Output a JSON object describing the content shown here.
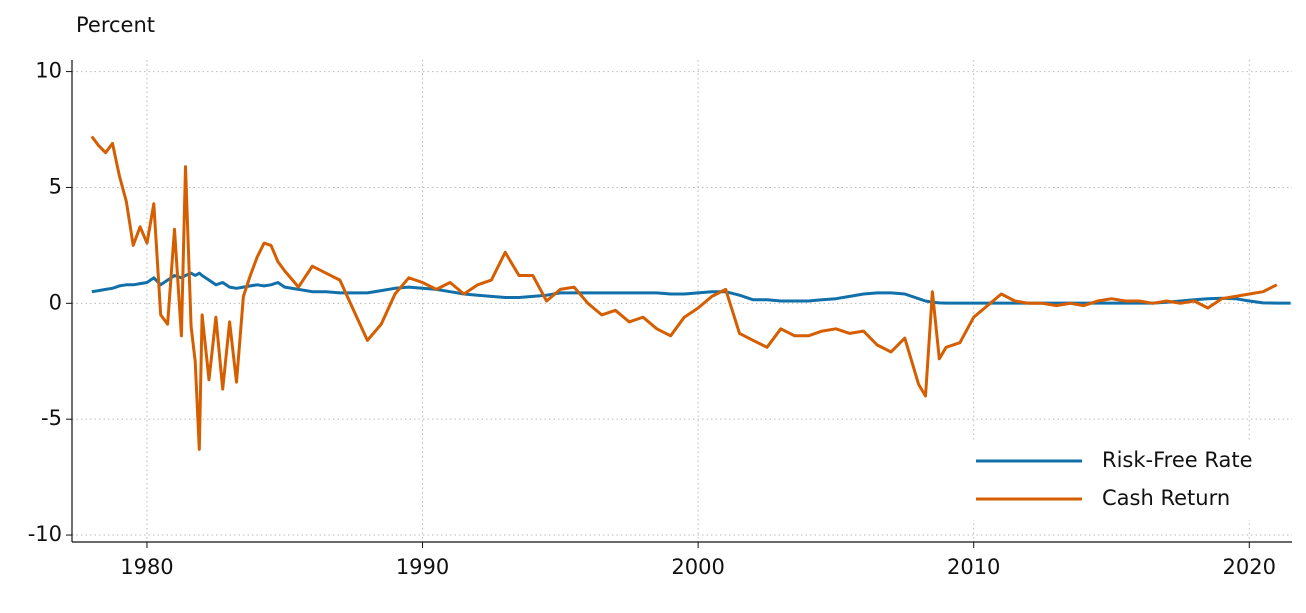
{
  "chart_data": {
    "type": "line",
    "y_label": "Percent",
    "x": [
      1978,
      1978.25,
      1978.5,
      1978.75,
      1979,
      1979.25,
      1979.5,
      1979.75,
      1980,
      1980.25,
      1980.5,
      1980.75,
      1981,
      1981.25,
      1981.4,
      1981.6,
      1981.75,
      1981.9,
      1982,
      1982.25,
      1982.5,
      1982.75,
      1983,
      1983.25,
      1983.5,
      1983.75,
      1984,
      1984.25,
      1984.5,
      1984.75,
      1985,
      1985.5,
      1986,
      1986.5,
      1987,
      1987.5,
      1988,
      1988.5,
      1989,
      1989.5,
      1990,
      1990.5,
      1991,
      1991.5,
      1992,
      1992.5,
      1993,
      1993.5,
      1994,
      1994.5,
      1995,
      1995.5,
      1996,
      1996.5,
      1997,
      1997.5,
      1998,
      1998.5,
      1999,
      1999.5,
      2000,
      2000.5,
      2001,
      2001.5,
      2002,
      2002.5,
      2003,
      2003.5,
      2004,
      2004.5,
      2005,
      2005.5,
      2006,
      2006.5,
      2007,
      2007.5,
      2008,
      2008.25,
      2008.5,
      2008.75,
      2009,
      2009.5,
      2010,
      2010.5,
      2011,
      2011.5,
      2012,
      2012.5,
      2013,
      2013.5,
      2014,
      2014.5,
      2015,
      2015.5,
      2016,
      2016.5,
      2017,
      2017.5,
      2018,
      2018.5,
      2019,
      2019.5,
      2020,
      2020.5,
      2021,
      2021.5
    ],
    "series": [
      {
        "name": "Risk-Free Rate",
        "color": "#1170aa",
        "values": [
          0.5,
          0.55,
          0.6,
          0.65,
          0.75,
          0.8,
          0.8,
          0.85,
          0.9,
          1.1,
          0.8,
          1.0,
          1.2,
          1.1,
          1.2,
          1.3,
          1.2,
          1.3,
          1.2,
          1.0,
          0.8,
          0.9,
          0.7,
          0.65,
          0.7,
          0.75,
          0.8,
          0.75,
          0.8,
          0.9,
          0.7,
          0.6,
          0.5,
          0.5,
          0.45,
          0.45,
          0.45,
          0.55,
          0.65,
          0.7,
          0.65,
          0.6,
          0.5,
          0.4,
          0.35,
          0.3,
          0.25,
          0.25,
          0.3,
          0.35,
          0.45,
          0.45,
          0.45,
          0.45,
          0.45,
          0.45,
          0.45,
          0.45,
          0.4,
          0.4,
          0.45,
          0.5,
          0.5,
          0.35,
          0.15,
          0.15,
          0.1,
          0.1,
          0.1,
          0.15,
          0.2,
          0.3,
          0.4,
          0.45,
          0.45,
          0.4,
          0.2,
          0.1,
          0.05,
          0.02,
          0.01,
          0.01,
          0.01,
          0.01,
          0.01,
          0.01,
          0.01,
          0.01,
          0.01,
          0.01,
          0.01,
          0.01,
          0.01,
          0.01,
          0.01,
          0.01,
          0.05,
          0.1,
          0.15,
          0.2,
          0.22,
          0.2,
          0.1,
          0.02,
          0.01,
          0.01
        ]
      },
      {
        "name": "Cash Return",
        "color": "#d55e00",
        "values": [
          7.2,
          6.8,
          6.5,
          6.9,
          5.5,
          4.4,
          2.5,
          3.3,
          2.6,
          4.3,
          -0.5,
          -0.9,
          3.2,
          -1.4,
          5.9,
          -1.0,
          -2.5,
          -6.3,
          -0.5,
          -3.3,
          -0.6,
          -3.7,
          -0.8,
          -3.4,
          0.3,
          1.2,
          2.0,
          2.6,
          2.5,
          1.8,
          1.4,
          0.7,
          1.6,
          1.3,
          1.0,
          -0.3,
          -1.6,
          -0.9,
          0.4,
          1.1,
          0.9,
          0.6,
          0.9,
          0.4,
          0.8,
          1.0,
          2.2,
          1.2,
          1.2,
          0.1,
          0.6,
          0.7,
          0.0,
          -0.5,
          -0.3,
          -0.8,
          -0.6,
          -1.1,
          -1.4,
          -0.6,
          -0.2,
          0.3,
          0.6,
          -1.3,
          -1.6,
          -1.9,
          -1.1,
          -1.4,
          -1.4,
          -1.2,
          -1.1,
          -1.3,
          -1.2,
          -1.8,
          -2.1,
          -1.5,
          -3.5,
          -4.0,
          0.5,
          -2.4,
          -1.9,
          -1.7,
          -0.6,
          -0.1,
          0.4,
          0.1,
          0.0,
          0.0,
          -0.1,
          0.0,
          -0.1,
          0.1,
          0.2,
          0.1,
          0.1,
          0.0,
          0.1,
          0.0,
          0.1,
          -0.2,
          0.2,
          0.3,
          0.4,
          0.5,
          0.8,
          null
        ]
      }
    ],
    "xlim": [
      1977.28,
      2021.55
    ],
    "xticks": [
      1980,
      1990,
      2000,
      2010,
      2020
    ],
    "ylim": [
      -10.3,
      10.5
    ],
    "yticks": [
      -10,
      -5,
      0,
      5,
      10
    ],
    "grid": true,
    "legend": "lower right"
  }
}
